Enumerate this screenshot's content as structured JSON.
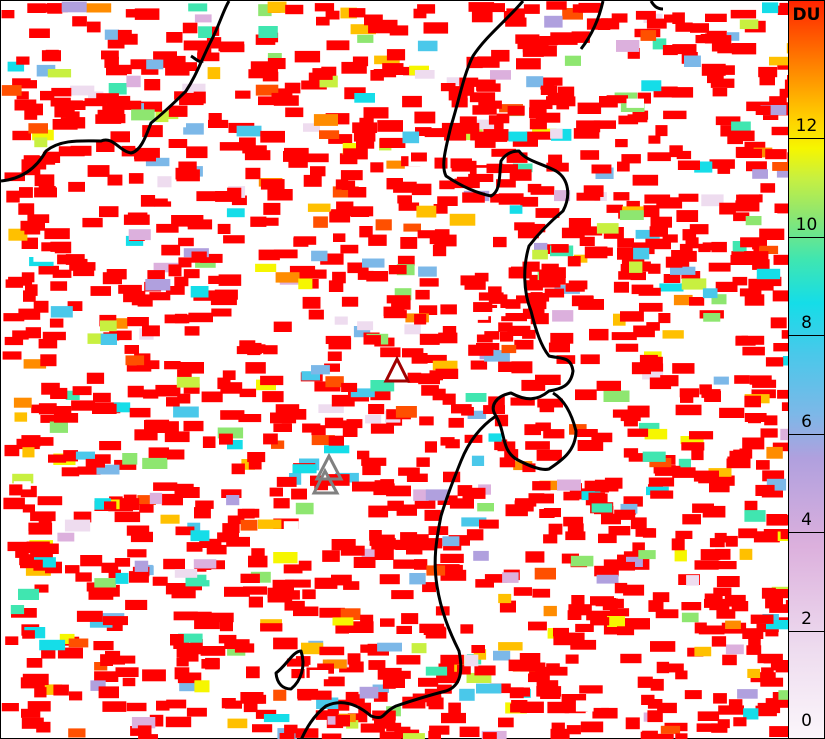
{
  "colorbar": {
    "unit": "DU",
    "range": [
      0,
      13.5
    ],
    "ticks": [
      "0",
      "2",
      "4",
      "6",
      "8",
      "10",
      "12"
    ],
    "colors": [
      "#fbf6fb",
      "#dcb0dd",
      "#b0a0de",
      "#7cb8e8",
      "#15dde8",
      "#40e6b0",
      "#8ee670",
      "#c8f040",
      "#f6f600",
      "#ffd000",
      "#ff9a00",
      "#ff2400"
    ]
  },
  "map": {
    "pixel_colors": {
      "dominant": "#ff0000",
      "others": [
        "#ffffff",
        "#eedcef",
        "#dcb0dd",
        "#b0a0de",
        "#7cb8e8",
        "#4ac8ea",
        "#15dde8",
        "#40e6b0",
        "#8ee670",
        "#c8f040",
        "#f6f600",
        "#ffc000",
        "#ff8c00",
        "#ff5000"
      ]
    },
    "markers": [
      {
        "type": "triangle",
        "color": "#a00000"
      },
      {
        "type": "triangle",
        "color": "#808080"
      },
      {
        "type": "triangle",
        "color": "#808080"
      }
    ]
  }
}
